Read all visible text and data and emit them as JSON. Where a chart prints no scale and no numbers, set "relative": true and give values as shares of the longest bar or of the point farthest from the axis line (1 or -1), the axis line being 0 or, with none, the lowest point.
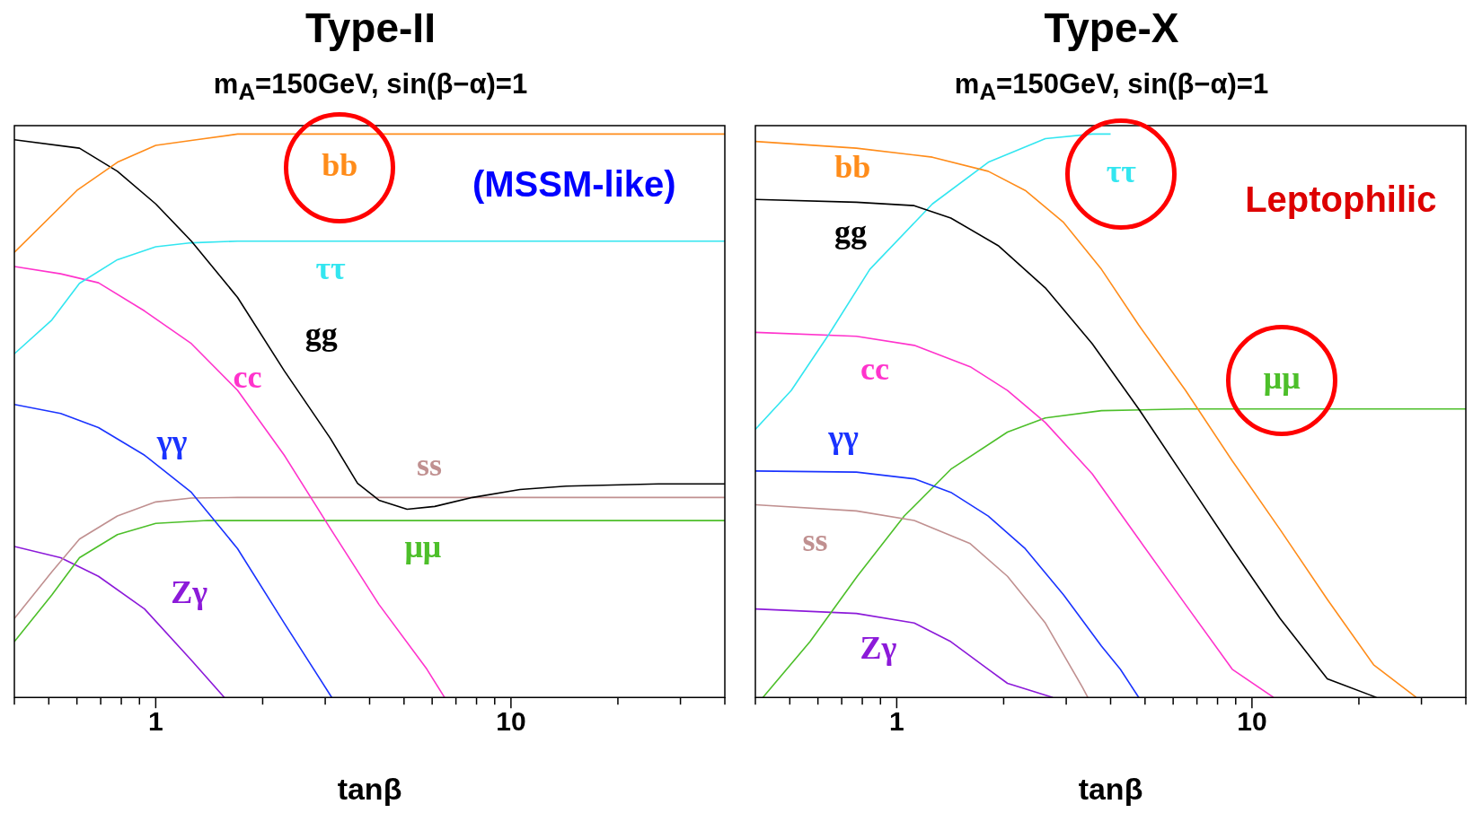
{
  "chart_data": [
    {
      "type": "line",
      "title": "Type-II",
      "subtitle": "m$_{A}$=150GeV, sin(β−α)=1",
      "xlabel": "tanβ",
      "relative": true,
      "log": "x",
      "grid": false,
      "legend": false,
      "xlim": [
        0.4,
        40
      ],
      "xticks": [
        {
          "value": 0.4,
          "label": null
        },
        {
          "value": 0.5,
          "label": null
        },
        {
          "value": 0.6,
          "label": null
        },
        {
          "value": 0.7,
          "label": null
        },
        {
          "value": 0.8,
          "label": null
        },
        {
          "value": 0.9,
          "label": null
        },
        {
          "value": 1,
          "label": "1"
        },
        {
          "value": 2,
          "label": null
        },
        {
          "value": 3,
          "label": null
        },
        {
          "value": 4,
          "label": null
        },
        {
          "value": 5,
          "label": null
        },
        {
          "value": 6,
          "label": null
        },
        {
          "value": 7,
          "label": null
        },
        {
          "value": 8,
          "label": null
        },
        {
          "value": 9,
          "label": null
        },
        {
          "value": 10,
          "label": "10"
        },
        {
          "value": 20,
          "label": null
        },
        {
          "value": 30,
          "label": null
        },
        {
          "value": 40,
          "label": null
        }
      ],
      "annotations": [
        "(MSSM-like)"
      ],
      "series": [
        {
          "name": "bb",
          "color": "#ff8c1a",
          "x": [
            0.4,
            0.6,
            0.78,
            1,
            1.3,
            1.7,
            40
          ],
          "values": [
            0.79,
            0.9,
            0.95,
            0.98,
            0.99,
            1,
            1
          ]
        },
        {
          "name": "gg",
          "color": "#000000",
          "x": [
            0.4,
            0.61,
            0.78,
            1,
            1.26,
            1.7,
            2.3,
            3.1,
            3.7,
            4.25,
            5.1,
            6.1,
            7.8,
            10.6,
            14.3,
            26,
            40
          ],
          "values": [
            0.99,
            0.975,
            0.934,
            0.876,
            0.81,
            0.71,
            0.58,
            0.46,
            0.38,
            0.35,
            0.334,
            0.339,
            0.355,
            0.369,
            0.375,
            0.379,
            0.379
          ]
        },
        {
          "name": "ττ",
          "color": "#33e6f0",
          "x": [
            0.4,
            0.51,
            0.61,
            0.78,
            1,
            1.26,
            1.7,
            40
          ],
          "values": [
            0.61,
            0.67,
            0.735,
            0.777,
            0.8,
            0.807,
            0.81,
            0.81
          ]
        },
        {
          "name": "cc",
          "color": "#ff33cc",
          "x": [
            0.4,
            0.54,
            0.69,
            0.93,
            1.26,
            1.7,
            2.3,
            3.1,
            4.25,
            5.8,
            6.5
          ],
          "values": [
            0.765,
            0.752,
            0.736,
            0.686,
            0.628,
            0.545,
            0.43,
            0.3,
            0.165,
            0.05,
            0
          ]
        },
        {
          "name": "γγ",
          "color": "#1a33ff",
          "x": [
            0.4,
            0.54,
            0.69,
            0.93,
            1.26,
            1.7,
            2.3,
            3.13
          ],
          "values": [
            0.52,
            0.504,
            0.479,
            0.43,
            0.364,
            0.264,
            0.132,
            0
          ]
        },
        {
          "name": "ss",
          "color": "#c09090",
          "x": [
            0.4,
            0.51,
            0.61,
            0.78,
            1,
            1.26,
            1.7,
            40
          ],
          "values": [
            0.14,
            0.223,
            0.281,
            0.322,
            0.347,
            0.354,
            0.355,
            0.355
          ]
        },
        {
          "name": "μμ",
          "color": "#4dbf2a",
          "x": [
            0.4,
            0.51,
            0.61,
            0.78,
            1,
            1.4,
            40
          ],
          "values": [
            0.099,
            0.182,
            0.248,
            0.289,
            0.309,
            0.314,
            0.314
          ]
        },
        {
          "name": "Zγ",
          "color": "#8c1ad9",
          "x": [
            0.4,
            0.54,
            0.69,
            0.93,
            1.26,
            1.56
          ],
          "values": [
            0.268,
            0.248,
            0.215,
            0.157,
            0.066,
            0
          ]
        }
      ]
    },
    {
      "type": "line",
      "title": "Type-X",
      "subtitle": "m$_{A}$=150GeV, sin(β−α)=1",
      "xlabel": "tanβ",
      "relative": true,
      "log": "x",
      "grid": false,
      "legend": false,
      "xlim": [
        0.4,
        40
      ],
      "xticks": [
        {
          "value": 0.4,
          "label": null
        },
        {
          "value": 0.5,
          "label": null
        },
        {
          "value": 0.6,
          "label": null
        },
        {
          "value": 0.7,
          "label": null
        },
        {
          "value": 0.8,
          "label": null
        },
        {
          "value": 0.9,
          "label": null
        },
        {
          "value": 1,
          "label": "1"
        },
        {
          "value": 2,
          "label": null
        },
        {
          "value": 3,
          "label": null
        },
        {
          "value": 4,
          "label": null
        },
        {
          "value": 5,
          "label": null
        },
        {
          "value": 6,
          "label": null
        },
        {
          "value": 7,
          "label": null
        },
        {
          "value": 8,
          "label": null
        },
        {
          "value": 9,
          "label": null
        },
        {
          "value": 10,
          "label": "10"
        },
        {
          "value": 20,
          "label": null
        },
        {
          "value": 30,
          "label": null
        },
        {
          "value": 40,
          "label": null
        }
      ],
      "annotations": [
        "Leptophilic"
      ],
      "series": [
        {
          "name": "bb",
          "color": "#ff8c1a",
          "x": [
            0.4,
            0.77,
            1.26,
            1.81,
            2.3,
            2.95,
            3.77,
            4.8,
            6.5,
            8.8,
            12,
            16.3,
            22,
            29
          ],
          "values": [
            0.987,
            0.975,
            0.959,
            0.934,
            0.9,
            0.843,
            0.76,
            0.661,
            0.545,
            0.42,
            0.298,
            0.174,
            0.058,
            0
          ]
        },
        {
          "name": "gg",
          "color": "#000000",
          "x": [
            0.4,
            0.77,
            1.12,
            1.42,
            1.93,
            2.62,
            3.55,
            4.8,
            6.5,
            8.8,
            12,
            16.3,
            22.4
          ],
          "values": [
            0.884,
            0.879,
            0.873,
            0.851,
            0.802,
            0.727,
            0.628,
            0.512,
            0.388,
            0.264,
            0.14,
            0.033,
            0
          ]
        },
        {
          "name": "ττ",
          "color": "#33e6f0",
          "x": [
            0.4,
            0.505,
            0.645,
            0.84,
            1.26,
            1.81,
            2.62,
            3.55,
            4
          ],
          "values": [
            0.476,
            0.545,
            0.645,
            0.76,
            0.876,
            0.95,
            0.992,
            1,
            1
          ]
        },
        {
          "name": "cc",
          "color": "#ff33cc",
          "x": [
            0.4,
            0.77,
            1.12,
            1.61,
            2.05,
            2.62,
            3.55,
            4.8,
            6.5,
            8.8,
            11.5
          ],
          "values": [
            0.648,
            0.641,
            0.625,
            0.587,
            0.545,
            0.488,
            0.397,
            0.281,
            0.165,
            0.05,
            0
          ]
        },
        {
          "name": "γγ",
          "color": "#1a33ff",
          "x": [
            0.4,
            0.77,
            1.12,
            1.42,
            1.81,
            2.3,
            2.95,
            3.77,
            4.26,
            4.8
          ],
          "values": [
            0.402,
            0.4,
            0.388,
            0.364,
            0.322,
            0.264,
            0.182,
            0.091,
            0.05,
            0
          ]
        },
        {
          "name": "ss",
          "color": "#c09090",
          "x": [
            0.4,
            0.77,
            1.12,
            1.61,
            2.05,
            2.62,
            3.34,
            3.45
          ],
          "values": [
            0.342,
            0.331,
            0.314,
            0.273,
            0.215,
            0.132,
            0.017,
            0
          ]
        },
        {
          "name": "μμ",
          "color": "#4dbf2a",
          "x": [
            0.42,
            0.57,
            0.774,
            1.05,
            1.42,
            2.05,
            2.62,
            3.77,
            6.5,
            40
          ],
          "values": [
            0,
            0.099,
            0.215,
            0.322,
            0.405,
            0.471,
            0.496,
            0.509,
            0.512,
            0.512
          ]
        },
        {
          "name": "Zγ",
          "color": "#8c1ad9",
          "x": [
            0.4,
            0.77,
            1.12,
            1.42,
            1.81,
            2.05,
            2.75
          ],
          "values": [
            0.157,
            0.149,
            0.132,
            0.099,
            0.05,
            0.025,
            0
          ]
        }
      ]
    }
  ]
}
